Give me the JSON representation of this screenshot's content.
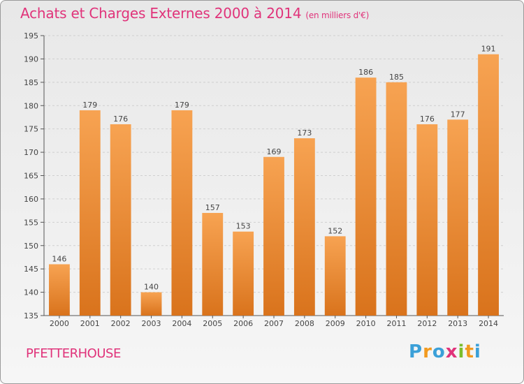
{
  "header": {
    "title": "Achats et Charges Externes 2000 à 2014",
    "unit": "(en milliers d'€)"
  },
  "footer": {
    "city": "PFETTERHOUSE",
    "logo_letters": [
      "P",
      "r",
      "o",
      "x",
      "i",
      "t",
      "i"
    ],
    "logo_colors": [
      "#3ba0d8",
      "#f29a1f",
      "#3ba0d8",
      "#e0337a",
      "#7cbd2c",
      "#f29a1f",
      "#3ba0d8"
    ]
  },
  "chart_data": {
    "type": "bar",
    "categories": [
      "2000",
      "2001",
      "2002",
      "2003",
      "2004",
      "2005",
      "2006",
      "2007",
      "2008",
      "2009",
      "2010",
      "2011",
      "2012",
      "2013",
      "2014"
    ],
    "values": [
      146,
      179,
      176,
      140,
      179,
      157,
      153,
      169,
      173,
      152,
      186,
      185,
      176,
      177,
      191
    ],
    "ylim": [
      135,
      195
    ],
    "yticks": [
      135,
      140,
      145,
      150,
      155,
      160,
      165,
      170,
      175,
      180,
      185,
      190,
      195
    ],
    "grid": true,
    "colors": {
      "bar_top": "#f7a352",
      "bar_bottom": "#d9731c",
      "title": "#e0337a"
    }
  }
}
